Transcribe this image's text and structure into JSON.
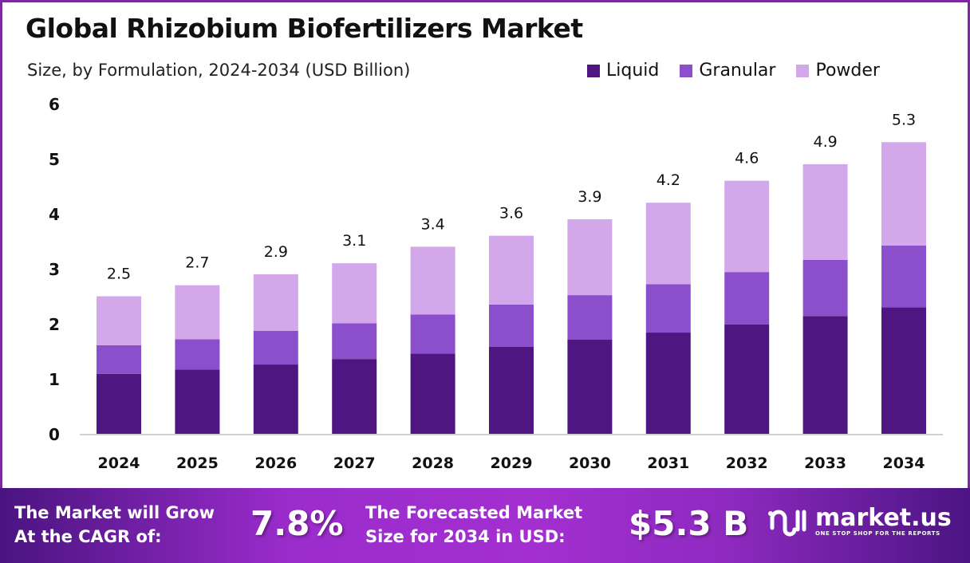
{
  "header": {
    "title": "Global Rhizobium Biofertilizers Market",
    "subtitle": "Size, by Formulation, 2024-2034 (USD Billion)"
  },
  "colors": {
    "Liquid": "#4e1680",
    "Granular": "#8b4fcc",
    "Powder": "#d3a8ea",
    "frame": "#7b2a9e"
  },
  "chart_data": {
    "type": "bar",
    "stacked": true,
    "title": "Global Rhizobium Biofertilizers Market",
    "subtitle": "Size, by Formulation, 2024-2034 (USD Billion)",
    "categories": [
      "2024",
      "2025",
      "2026",
      "2027",
      "2028",
      "2029",
      "2030",
      "2031",
      "2032",
      "2033",
      "2034"
    ],
    "series": [
      {
        "name": "Liquid",
        "values": [
          1.09,
          1.17,
          1.26,
          1.36,
          1.46,
          1.58,
          1.71,
          1.84,
          1.99,
          2.14,
          2.3
        ]
      },
      {
        "name": "Granular",
        "values": [
          0.52,
          0.55,
          0.61,
          0.65,
          0.71,
          0.77,
          0.81,
          0.88,
          0.95,
          1.02,
          1.12
        ]
      },
      {
        "name": "Powder",
        "values": [
          0.89,
          0.98,
          1.03,
          1.09,
          1.23,
          1.25,
          1.38,
          1.48,
          1.66,
          1.74,
          1.88
        ]
      }
    ],
    "totals": [
      "2.5",
      "2.7",
      "2.9",
      "3.1",
      "3.4",
      "3.6",
      "3.9",
      "4.2",
      "4.6",
      "4.9",
      "5.3"
    ],
    "yticks": [
      "0",
      "1",
      "2",
      "3",
      "4",
      "5",
      "6"
    ],
    "ylim": [
      0,
      6
    ],
    "grid": false,
    "legend_position": "top-right"
  },
  "footer": {
    "cagr_label_1": "The Market will Grow",
    "cagr_label_2": "At the CAGR of:",
    "cagr_value": "7.8%",
    "forecast_label_1": "The Forecasted Market",
    "forecast_label_2": "Size for 2034 in USD:",
    "forecast_value": "$5.3 B",
    "logo_name": "market.us",
    "logo_tagline": "ONE STOP SHOP FOR THE REPORTS"
  }
}
